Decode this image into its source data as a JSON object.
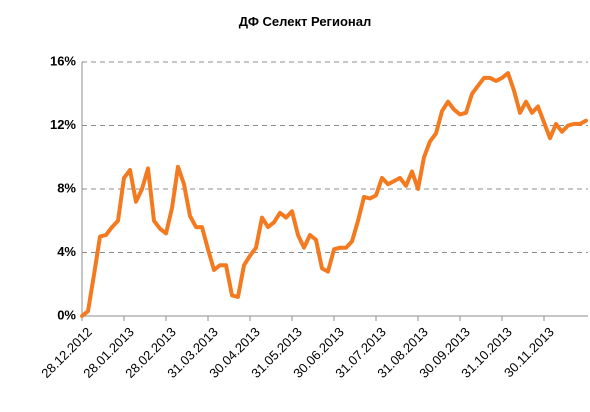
{
  "chart_data": {
    "type": "line",
    "title": "ДФ Селект Регионал",
    "categories": [
      "28.12.2012",
      null,
      null,
      null,
      null,
      null,
      null,
      "28.01.2013",
      null,
      null,
      null,
      null,
      null,
      null,
      "28.02.2013",
      null,
      null,
      null,
      null,
      null,
      null,
      "31.03.2013",
      null,
      null,
      null,
      null,
      null,
      null,
      "30.04.2013",
      null,
      null,
      null,
      null,
      null,
      null,
      "31.05.2013",
      null,
      null,
      null,
      null,
      null,
      null,
      "30.06.2013",
      null,
      null,
      null,
      null,
      null,
      null,
      "31.07.2013",
      null,
      null,
      null,
      null,
      null,
      null,
      "31.08.2013",
      null,
      null,
      null,
      null,
      null,
      null,
      "30.09.2013",
      null,
      null,
      null,
      null,
      null,
      null,
      "31.10.2013",
      null,
      null,
      null,
      null,
      null,
      null,
      "30.11.2013",
      null,
      null,
      null,
      null,
      null,
      null,
      null
    ],
    "series": [
      {
        "name": "ДФ Селект Регионал",
        "color": "#f47a20",
        "values": [
          0,
          0.3,
          2.6,
          5,
          5.1,
          5.6,
          6,
          8.7,
          9.2,
          7.2,
          8,
          9.3,
          6,
          5.5,
          5.2,
          6.8,
          9.4,
          8.3,
          6.3,
          5.6,
          5.6,
          4.2,
          2.9,
          3.2,
          3.2,
          1.3,
          1.2,
          3.2,
          3.8,
          4.3,
          6.2,
          5.6,
          5.9,
          6.5,
          6.2,
          6.6,
          5.1,
          4.3,
          5.1,
          4.8,
          3,
          2.8,
          4.2,
          4.3,
          4.3,
          4.7,
          6,
          7.5,
          7.4,
          7.6,
          8.7,
          8.3,
          8.5,
          8.7,
          8.2,
          9.1,
          8,
          10,
          11,
          11.5,
          12.9,
          13.5,
          13,
          12.7,
          12.8,
          14,
          14.5,
          15,
          15,
          14.8,
          15,
          15.3,
          14.2,
          12.8,
          13.5,
          12.8,
          13.2,
          12.2,
          11.2,
          12.1,
          11.6,
          12,
          12.1,
          12.1,
          12.3
        ]
      }
    ],
    "ylim": [
      0,
      16
    ],
    "yticks": [
      {
        "value": 0,
        "label": "0%"
      },
      {
        "value": 4,
        "label": "4%"
      },
      {
        "value": 8,
        "label": "8%"
      },
      {
        "value": 12,
        "label": "12%"
      },
      {
        "value": 16,
        "label": "16%"
      }
    ],
    "grid": true
  }
}
